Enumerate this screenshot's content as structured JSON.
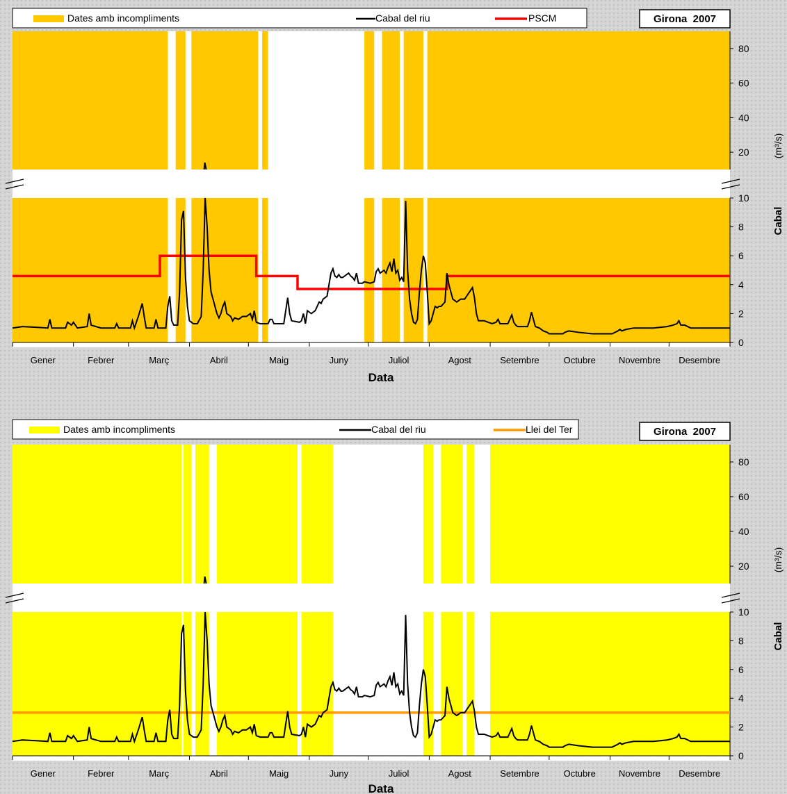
{
  "chart_data": [
    {
      "type": "line",
      "legend": [
        {
          "label": "Dates amb incompliments",
          "color": "#FFC800",
          "kind": "band"
        },
        {
          "label": "Cabal del riu",
          "color": "#000000",
          "kind": "line"
        },
        {
          "label": "PSCM",
          "color": "#FF0000",
          "kind": "line"
        }
      ],
      "box_label": "Girona  2007",
      "xlabel": "Data",
      "ylabel": "Cabal",
      "ylabel_unit": "(m³/s)",
      "months": [
        "Gener",
        "Febrer",
        "Març",
        "Abril",
        "Maig",
        "Juny",
        "Juliol",
        "Agost",
        "Setembre",
        "Octubre",
        "Novembre",
        "Desembre"
      ],
      "ylim_lower": [
        0,
        10
      ],
      "yticks_lower": [
        "0",
        "2",
        "4",
        "6",
        "8",
        "10"
      ],
      "ylim_upper": [
        10,
        90
      ],
      "yticks_upper": [
        "20",
        "40",
        "60",
        "80"
      ],
      "axis_break": true,
      "band_color": "#FFC800",
      "threshold_color": "#FF0000",
      "bands_days": [
        [
          0,
          79
        ],
        [
          83,
          88
        ],
        [
          91,
          125
        ],
        [
          127,
          130
        ],
        [
          179,
          184
        ],
        [
          188,
          197
        ],
        [
          199,
          209
        ],
        [
          211,
          365
        ]
      ],
      "threshold_steps": [
        [
          0,
          4.6
        ],
        [
          75,
          6.0
        ],
        [
          124,
          4.6
        ],
        [
          145,
          3.7
        ],
        [
          221,
          4.6
        ],
        [
          365,
          4.6
        ]
      ],
      "flow_points": [
        [
          0,
          1.0
        ],
        [
          5,
          1.1
        ],
        [
          12,
          1.05
        ],
        [
          18,
          1.0
        ],
        [
          19,
          1.6
        ],
        [
          20,
          1.0
        ],
        [
          27,
          1.0
        ],
        [
          28,
          1.4
        ],
        [
          30,
          1.2
        ],
        [
          31,
          1.4
        ],
        [
          33,
          1.0
        ],
        [
          38,
          1.1
        ],
        [
          39,
          2.0
        ],
        [
          40,
          1.2
        ],
        [
          45,
          1.0
        ],
        [
          52,
          1.0
        ],
        [
          53,
          1.3
        ],
        [
          54,
          1.0
        ],
        [
          60,
          1.0
        ],
        [
          61,
          1.5
        ],
        [
          62,
          1.0
        ],
        [
          64,
          1.8
        ],
        [
          66,
          2.7
        ],
        [
          67,
          1.8
        ],
        [
          68,
          1.0
        ],
        [
          72,
          1.0
        ],
        [
          73,
          1.6
        ],
        [
          74,
          1.0
        ],
        [
          78,
          1.0
        ],
        [
          79,
          2.5
        ],
        [
          80,
          3.2
        ],
        [
          81,
          1.5
        ],
        [
          82,
          1.2
        ],
        [
          83,
          1.2
        ],
        [
          84,
          1.2
        ],
        [
          85,
          3.5
        ],
        [
          86,
          8.5
        ],
        [
          87,
          9.1
        ],
        [
          88,
          4.5
        ],
        [
          89,
          2.5
        ],
        [
          90,
          1.5
        ],
        [
          92,
          1.3
        ],
        [
          94,
          1.3
        ],
        [
          96,
          1.8
        ],
        [
          97,
          5.0
        ],
        [
          98,
          10.2
        ],
        [
          99,
          8.0
        ],
        [
          100,
          5.0
        ],
        [
          101,
          3.5
        ],
        [
          102,
          3.0
        ],
        [
          104,
          2.0
        ],
        [
          105,
          1.7
        ],
        [
          106,
          2.0
        ],
        [
          107,
          2.5
        ],
        [
          108,
          2.8
        ],
        [
          109,
          2.0
        ],
        [
          111,
          1.8
        ],
        [
          112,
          1.5
        ],
        [
          113,
          1.7
        ],
        [
          115,
          1.6
        ],
        [
          117,
          1.8
        ],
        [
          119,
          1.8
        ],
        [
          121,
          2.0
        ],
        [
          122,
          1.6
        ],
        [
          123,
          2.2
        ],
        [
          124,
          1.4
        ],
        [
          126,
          1.3
        ],
        [
          130,
          1.3
        ],
        [
          131,
          1.6
        ],
        [
          132,
          1.6
        ],
        [
          133,
          1.3
        ],
        [
          138,
          1.3
        ],
        [
          139,
          2.2
        ],
        [
          140,
          3.1
        ],
        [
          141,
          2.0
        ],
        [
          142,
          1.5
        ],
        [
          146,
          1.4
        ],
        [
          147,
          1.5
        ],
        [
          148,
          2.0
        ],
        [
          149,
          1.3
        ],
        [
          150,
          2.2
        ],
        [
          152,
          2.0
        ],
        [
          154,
          2.2
        ],
        [
          155,
          2.5
        ],
        [
          156,
          2.8
        ],
        [
          157,
          2.7
        ],
        [
          158,
          3.0
        ],
        [
          160,
          3.2
        ],
        [
          161,
          4.0
        ],
        [
          162,
          4.8
        ],
        [
          163,
          5.1
        ],
        [
          164,
          4.6
        ],
        [
          165,
          4.5
        ],
        [
          166,
          4.7
        ],
        [
          167,
          4.5
        ],
        [
          168,
          4.5
        ],
        [
          170,
          4.7
        ],
        [
          171,
          4.8
        ],
        [
          172,
          4.6
        ],
        [
          173,
          4.5
        ],
        [
          174,
          4.3
        ],
        [
          175,
          4.8
        ],
        [
          176,
          4.1
        ],
        [
          178,
          4.1
        ],
        [
          179,
          4.2
        ],
        [
          182,
          4.1
        ],
        [
          184,
          4.2
        ],
        [
          185,
          4.9
        ],
        [
          186,
          5.1
        ],
        [
          187,
          4.8
        ],
        [
          189,
          5.0
        ],
        [
          190,
          4.8
        ],
        [
          191,
          5.2
        ],
        [
          192,
          5.5
        ],
        [
          193,
          4.9
        ],
        [
          194,
          5.8
        ],
        [
          195,
          4.8
        ],
        [
          196,
          5.0
        ],
        [
          197,
          4.3
        ],
        [
          198,
          4.5
        ],
        [
          199,
          4.2
        ],
        [
          200,
          9.8
        ],
        [
          201,
          5.0
        ],
        [
          202,
          3.0
        ],
        [
          203,
          2.0
        ],
        [
          204,
          1.4
        ],
        [
          205,
          1.3
        ],
        [
          206,
          1.6
        ],
        [
          207,
          3.5
        ],
        [
          208,
          5.0
        ],
        [
          209,
          6.0
        ],
        [
          210,
          5.5
        ],
        [
          211,
          3.5
        ],
        [
          212,
          1.3
        ],
        [
          213,
          1.5
        ],
        [
          214,
          2.0
        ],
        [
          215,
          2.5
        ],
        [
          216,
          2.4
        ],
        [
          217,
          2.5
        ],
        [
          218,
          2.5
        ],
        [
          220,
          2.8
        ],
        [
          221,
          4.8
        ],
        [
          222,
          4.0
        ],
        [
          223,
          3.5
        ],
        [
          224,
          3.0
        ],
        [
          226,
          2.8
        ],
        [
          228,
          3.0
        ],
        [
          230,
          3.0
        ],
        [
          231,
          3.2
        ],
        [
          232,
          3.4
        ],
        [
          233,
          3.6
        ],
        [
          234,
          3.8
        ],
        [
          235,
          3.1
        ],
        [
          236,
          2.0
        ],
        [
          237,
          1.5
        ],
        [
          240,
          1.5
        ],
        [
          242,
          1.4
        ],
        [
          244,
          1.3
        ],
        [
          246,
          1.4
        ],
        [
          247,
          1.6
        ],
        [
          248,
          1.3
        ],
        [
          252,
          1.3
        ],
        [
          253,
          1.6
        ],
        [
          254,
          1.9
        ],
        [
          255,
          1.4
        ],
        [
          256,
          1.2
        ],
        [
          257,
          1.1
        ],
        [
          262,
          1.1
        ],
        [
          263,
          1.5
        ],
        [
          264,
          2.1
        ],
        [
          265,
          1.6
        ],
        [
          266,
          1.1
        ],
        [
          268,
          1.0
        ],
        [
          270,
          0.8
        ],
        [
          272,
          0.7
        ],
        [
          273,
          0.6
        ],
        [
          280,
          0.6
        ],
        [
          281,
          0.7
        ],
        [
          283,
          0.8
        ],
        [
          288,
          0.7
        ],
        [
          295,
          0.6
        ],
        [
          305,
          0.6
        ],
        [
          308,
          0.8
        ],
        [
          309,
          0.9
        ],
        [
          310,
          0.8
        ],
        [
          312,
          0.9
        ],
        [
          316,
          1.0
        ],
        [
          320,
          1.0
        ],
        [
          326,
          1.0
        ],
        [
          333,
          1.1
        ],
        [
          336,
          1.2
        ],
        [
          338,
          1.3
        ],
        [
          339,
          1.5
        ],
        [
          340,
          1.2
        ],
        [
          342,
          1.2
        ],
        [
          345,
          1.0
        ],
        [
          350,
          1.0
        ],
        [
          355,
          1.0
        ],
        [
          360,
          1.0
        ],
        [
          365,
          1.0
        ]
      ]
    },
    {
      "type": "line",
      "legend": [
        {
          "label": "Dates amb incompliments",
          "color": "#FFFF00",
          "kind": "band"
        },
        {
          "label": "Cabal del riu",
          "color": "#000000",
          "kind": "line"
        },
        {
          "label": "Llei del Ter",
          "color": "#FF9900",
          "kind": "line"
        }
      ],
      "box_label": "Girona  2007",
      "xlabel": "Data",
      "ylabel": "Cabal",
      "ylabel_unit": "(m³/s)",
      "months": [
        "Gener",
        "Febrer",
        "Març",
        "Abril",
        "Maig",
        "Juny",
        "Juliol",
        "Agost",
        "Setembre",
        "Octubre",
        "Novembre",
        "Desembre"
      ],
      "ylim_lower": [
        0,
        10
      ],
      "yticks_lower": [
        "0",
        "2",
        "4",
        "6",
        "8",
        "10"
      ],
      "ylim_upper": [
        10,
        90
      ],
      "yticks_upper": [
        "20",
        "40",
        "60",
        "80"
      ],
      "axis_break": true,
      "band_color": "#FFFF00",
      "threshold_color": "#FF9900",
      "bands_days": [
        [
          0,
          86
        ],
        [
          87,
          91
        ],
        [
          93,
          100
        ],
        [
          104,
          145
        ],
        [
          147,
          163
        ],
        [
          209,
          214
        ],
        [
          218,
          229
        ],
        [
          231,
          235
        ],
        [
          243,
          365
        ]
      ],
      "threshold_steps": [
        [
          0,
          3.0
        ],
        [
          365,
          3.0
        ]
      ],
      "flow_points": "same_as_first"
    }
  ]
}
